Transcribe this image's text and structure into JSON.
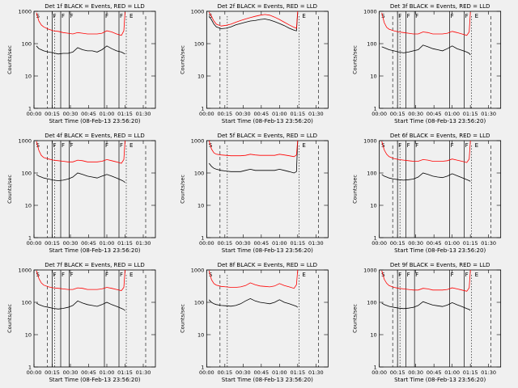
{
  "figure": {
    "background": "#f0f0f0",
    "series_colors": {
      "events": "#000000",
      "lld": "#ff0000"
    }
  },
  "chart_data": [
    {
      "type": "line",
      "title": "Det 1f BLACK = Events, RED = LLD",
      "xlabel": "Start Time (08-Feb-13 23:56:20)",
      "ylabel": "Counts/sec",
      "xticks": [
        "00:00",
        "00:15",
        "00:30",
        "00:45",
        "01:00",
        "01:15",
        "01:30"
      ],
      "yticks": [
        "1",
        "10",
        "100",
        "1000"
      ],
      "yscale": "log",
      "ylim": [
        1,
        1000
      ],
      "flags": [
        "S",
        "F",
        "F",
        "F",
        "F",
        "F",
        "E"
      ],
      "x": [
        2,
        4,
        6,
        8,
        12,
        16,
        20,
        24,
        28,
        32,
        36,
        40,
        44,
        48,
        52,
        56,
        60,
        64,
        68,
        72,
        74,
        75
      ],
      "series": [
        {
          "name": "BLACK = Events",
          "color": "#000000",
          "values": [
            85,
            70,
            65,
            60,
            55,
            52,
            48,
            50,
            50,
            55,
            75,
            65,
            60,
            60,
            55,
            65,
            85,
            70,
            60,
            55,
            50,
            48
          ]
        },
        {
          "name": "RED = LLD",
          "color": "#ff0000",
          "values": [
            900,
            500,
            380,
            330,
            280,
            250,
            240,
            220,
            210,
            200,
            220,
            210,
            200,
            200,
            200,
            210,
            250,
            230,
            200,
            180,
            250,
            950
          ]
        }
      ]
    },
    {
      "type": "line",
      "title": "Det 2f BLACK = Events, RED = LLD",
      "xlabel": "Start Time (08-Feb-13 23:56:20)",
      "ylabel": "Counts/sec",
      "xticks": [
        "00:00",
        "00:15",
        "00:30",
        "00:45",
        "01:00",
        "01:15",
        "01:30"
      ],
      "yticks": [
        "1",
        "10",
        "100",
        "1000"
      ],
      "yscale": "log",
      "ylim": [
        1,
        1000
      ],
      "flags": [
        "S",
        "E"
      ],
      "x": [
        2,
        4,
        6,
        8,
        12,
        16,
        20,
        24,
        28,
        32,
        36,
        40,
        44,
        48,
        52,
        56,
        60,
        64,
        68,
        72,
        74,
        75
      ],
      "series": [
        {
          "name": "BLACK = Events",
          "color": "#000000",
          "values": [
            700,
            550,
            400,
            330,
            290,
            300,
            330,
            380,
            420,
            460,
            500,
            520,
            560,
            580,
            540,
            480,
            420,
            360,
            300,
            260,
            250,
            900
          ]
        },
        {
          "name": "RED = LLD",
          "color": "#ff0000",
          "values": [
            950,
            700,
            500,
            400,
            350,
            370,
            400,
            460,
            520,
            580,
            640,
            700,
            760,
            800,
            760,
            660,
            560,
            460,
            380,
            320,
            300,
            1000
          ]
        }
      ]
    },
    {
      "type": "line",
      "title": "Det 3f BLACK = Events, RED = LLD",
      "xlabel": "Start Time (08-Feb-13 23:56:20)",
      "ylabel": "Counts/sec",
      "xticks": [
        "00:00",
        "00:15",
        "00:30",
        "00:45",
        "01:00",
        "01:15",
        "01:30"
      ],
      "yticks": [
        "1",
        "10",
        "100",
        "1000"
      ],
      "yscale": "log",
      "ylim": [
        1,
        1000
      ],
      "flags": [
        "S",
        "F",
        "F",
        "F",
        "F",
        "F",
        "E"
      ],
      "x": [
        2,
        4,
        6,
        8,
        12,
        16,
        20,
        24,
        28,
        32,
        36,
        40,
        44,
        48,
        52,
        56,
        60,
        64,
        68,
        72,
        74,
        75
      ],
      "series": [
        {
          "name": "BLACK = Events",
          "color": "#000000",
          "values": [
            80,
            75,
            70,
            65,
            60,
            55,
            52,
            55,
            60,
            65,
            90,
            80,
            70,
            65,
            60,
            70,
            85,
            70,
            62,
            55,
            50,
            45
          ]
        },
        {
          "name": "RED = LLD",
          "color": "#ff0000",
          "values": [
            900,
            450,
            320,
            280,
            250,
            230,
            220,
            210,
            200,
            200,
            230,
            220,
            200,
            200,
            200,
            210,
            240,
            220,
            200,
            180,
            230,
            950
          ]
        }
      ]
    },
    {
      "type": "line",
      "title": "Det 4f BLACK = Events, RED = LLD",
      "xlabel": "Start Time (08-Feb-13 23:56:20)",
      "ylabel": "Counts/sec",
      "xticks": [
        "00:00",
        "00:15",
        "00:30",
        "00:45",
        "01:00",
        "01:15",
        "01:30"
      ],
      "yticks": [
        "1",
        "10",
        "100",
        "1000"
      ],
      "yscale": "log",
      "ylim": [
        1,
        1000
      ],
      "flags": [
        "S",
        "F",
        "F",
        "F",
        "F",
        "F",
        "E"
      ],
      "x": [
        2,
        4,
        6,
        8,
        12,
        16,
        20,
        24,
        28,
        32,
        36,
        40,
        44,
        48,
        52,
        56,
        60,
        64,
        68,
        72,
        74,
        75
      ],
      "series": [
        {
          "name": "BLACK = Events",
          "color": "#000000",
          "values": [
            90,
            80,
            75,
            70,
            65,
            60,
            58,
            60,
            65,
            75,
            100,
            90,
            80,
            75,
            70,
            80,
            90,
            80,
            70,
            60,
            55,
            50
          ]
        },
        {
          "name": "RED = LLD",
          "color": "#ff0000",
          "values": [
            950,
            500,
            350,
            300,
            270,
            250,
            240,
            230,
            220,
            220,
            250,
            240,
            220,
            220,
            220,
            230,
            260,
            240,
            220,
            200,
            260,
            1000
          ]
        }
      ]
    },
    {
      "type": "line",
      "title": "Det 5f BLACK = Events, RED = LLD",
      "xlabel": "Start Time (08-Feb-13 23:56:20)",
      "ylabel": "Counts/sec",
      "xticks": [
        "00:00",
        "00:15",
        "00:30",
        "00:45",
        "01:00",
        "01:15",
        "01:30"
      ],
      "yticks": [
        "1",
        "10",
        "100",
        "1000"
      ],
      "yscale": "log",
      "ylim": [
        1,
        1000
      ],
      "flags": [
        "S",
        "E"
      ],
      "x": [
        2,
        4,
        6,
        8,
        12,
        16,
        20,
        24,
        28,
        32,
        36,
        40,
        44,
        48,
        52,
        56,
        60,
        64,
        68,
        72,
        74,
        75
      ],
      "series": [
        {
          "name": "BLACK = Events",
          "color": "#000000",
          "values": [
            200,
            160,
            140,
            130,
            120,
            115,
            110,
            110,
            110,
            120,
            130,
            120,
            120,
            120,
            120,
            120,
            130,
            120,
            110,
            100,
            110,
            1000
          ]
        },
        {
          "name": "RED = LLD",
          "color": "#ff0000",
          "values": [
            1000,
            550,
            420,
            380,
            360,
            350,
            340,
            340,
            340,
            350,
            380,
            360,
            350,
            350,
            350,
            350,
            380,
            360,
            340,
            320,
            360,
            1000
          ]
        }
      ]
    },
    {
      "type": "line",
      "title": "Det 6f BLACK = Events, RED = LLD",
      "xlabel": "Start Time (08-Feb-13 23:56:20)",
      "ylabel": "Counts/sec",
      "xticks": [
        "00:00",
        "00:15",
        "00:30",
        "00:45",
        "01:00",
        "01:15",
        "01:30"
      ],
      "yticks": [
        "1",
        "10",
        "100",
        "1000"
      ],
      "yscale": "log",
      "ylim": [
        1,
        1000
      ],
      "flags": [
        "S",
        "F",
        "F",
        "F",
        "F",
        "F",
        "E"
      ],
      "x": [
        2,
        4,
        6,
        8,
        12,
        16,
        20,
        24,
        28,
        32,
        36,
        40,
        44,
        48,
        52,
        56,
        60,
        64,
        68,
        72,
        74,
        75
      ],
      "series": [
        {
          "name": "BLACK = Events",
          "color": "#000000",
          "values": [
            90,
            80,
            75,
            70,
            65,
            62,
            60,
            62,
            65,
            75,
            100,
            90,
            80,
            75,
            72,
            80,
            95,
            82,
            72,
            62,
            58,
            55
          ]
        },
        {
          "name": "RED = LLD",
          "color": "#ff0000",
          "values": [
            950,
            520,
            380,
            320,
            280,
            260,
            250,
            240,
            230,
            230,
            260,
            250,
            230,
            230,
            230,
            240,
            270,
            250,
            230,
            210,
            270,
            1000
          ]
        }
      ]
    },
    {
      "type": "line",
      "title": "Det 7f BLACK = Events, RED = LLD",
      "xlabel": "Start Time (08-Feb-13 23:56:20)",
      "ylabel": "Counts/sec",
      "xticks": [
        "00:00",
        "00:15",
        "00:30",
        "00:45",
        "01:00",
        "01:15",
        "01:30"
      ],
      "yticks": [
        "1",
        "10",
        "100",
        "1000"
      ],
      "yscale": "log",
      "ylim": [
        1,
        1000
      ],
      "flags": [
        "S",
        "F",
        "F",
        "F",
        "F",
        "F",
        "E"
      ],
      "x": [
        2,
        4,
        6,
        8,
        12,
        16,
        20,
        24,
        28,
        32,
        36,
        40,
        44,
        48,
        52,
        56,
        60,
        64,
        68,
        72,
        74,
        75
      ],
      "series": [
        {
          "name": "BLACK = Events",
          "color": "#000000",
          "values": [
            95,
            85,
            80,
            75,
            70,
            65,
            62,
            65,
            70,
            80,
            110,
            95,
            85,
            80,
            75,
            85,
            100,
            85,
            75,
            65,
            60,
            55
          ]
        },
        {
          "name": "RED = LLD",
          "color": "#ff0000",
          "values": [
            950,
            550,
            400,
            340,
            300,
            280,
            270,
            260,
            250,
            250,
            280,
            270,
            250,
            250,
            250,
            260,
            290,
            270,
            250,
            230,
            290,
            1000
          ]
        }
      ]
    },
    {
      "type": "line",
      "title": "Det 8f BLACK = Events, RED = LLD",
      "xlabel": "Start Time (08-Feb-13 23:56:20)",
      "ylabel": "Counts/sec",
      "xticks": [
        "00:00",
        "00:15",
        "00:30",
        "00:45",
        "01:00",
        "01:15",
        "01:30"
      ],
      "yticks": [
        "1",
        "10",
        "100",
        "1000"
      ],
      "yscale": "log",
      "ylim": [
        1,
        1000
      ],
      "flags": [
        "S",
        "E"
      ],
      "x": [
        2,
        4,
        6,
        8,
        12,
        16,
        20,
        24,
        28,
        32,
        36,
        40,
        44,
        48,
        52,
        56,
        60,
        64,
        68,
        72,
        74,
        75
      ],
      "series": [
        {
          "name": "BLACK = Events",
          "color": "#000000",
          "values": [
            120,
            100,
            90,
            85,
            80,
            78,
            76,
            80,
            90,
            110,
            130,
            110,
            100,
            95,
            90,
            100,
            120,
            100,
            90,
            80,
            75,
            70
          ]
        },
        {
          "name": "RED = LLD",
          "color": "#ff0000",
          "values": [
            950,
            500,
            380,
            340,
            310,
            300,
            290,
            290,
            300,
            330,
            400,
            350,
            320,
            310,
            300,
            320,
            380,
            330,
            300,
            270,
            350,
            1000
          ]
        }
      ]
    },
    {
      "type": "line",
      "title": "Det 9f BLACK = Events, RED = LLD",
      "xlabel": "Start Time (08-Feb-13 23:56:20)",
      "ylabel": "Counts/sec",
      "xticks": [
        "00:00",
        "00:15",
        "00:30",
        "00:45",
        "01:00",
        "01:15",
        "01:30"
      ],
      "yticks": [
        "1",
        "10",
        "100",
        "1000"
      ],
      "yscale": "log",
      "ylim": [
        1,
        1000
      ],
      "flags": [
        "S",
        "F",
        "F",
        "F",
        "F",
        "F",
        "E"
      ],
      "x": [
        2,
        4,
        6,
        8,
        12,
        16,
        20,
        24,
        28,
        32,
        36,
        40,
        44,
        48,
        52,
        56,
        60,
        64,
        68,
        72,
        74,
        75
      ],
      "series": [
        {
          "name": "BLACK = Events",
          "color": "#000000",
          "values": [
            95,
            85,
            80,
            75,
            70,
            66,
            64,
            66,
            70,
            80,
            105,
            92,
            82,
            78,
            74,
            82,
            98,
            84,
            74,
            64,
            60,
            56
          ]
        },
        {
          "name": "RED = LLD",
          "color": "#ff0000",
          "values": [
            950,
            520,
            390,
            330,
            290,
            270,
            260,
            250,
            240,
            240,
            270,
            260,
            240,
            240,
            240,
            250,
            280,
            260,
            240,
            220,
            280,
            1000
          ]
        }
      ]
    }
  ]
}
